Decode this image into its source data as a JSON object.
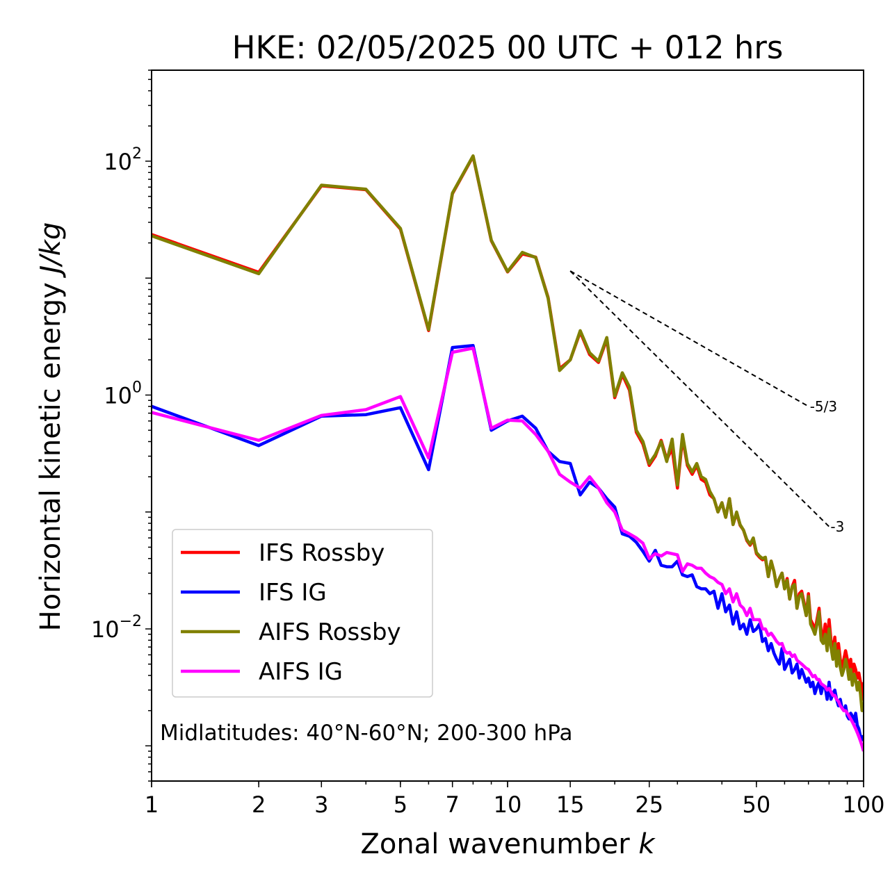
{
  "chart_data": {
    "type": "line",
    "title": "HKE: 02/05/2025 00 UTC + 012 hrs",
    "xlabel": "Zonal wavenumber",
    "xlabel_var": "k",
    "ylabel": "Horizontal kinetic energy",
    "ylabel_units": "J/kg",
    "xscale": "log",
    "yscale": "log",
    "xlim": [
      1,
      100
    ],
    "ylim": [
      0.0005,
      600
    ],
    "xticks": [
      1,
      2,
      3,
      5,
      7,
      10,
      15,
      25,
      50,
      100
    ],
    "xtick_labels": [
      "1",
      "2",
      "3",
      "5",
      "7",
      "10",
      "15",
      "25",
      "50",
      "100"
    ],
    "yticks": [
      0.01,
      1,
      100
    ],
    "ytick_labels": [
      {
        "base": "10",
        "exp": "−2"
      },
      {
        "base": "10",
        "exp": "0"
      },
      {
        "base": "10",
        "exp": "2"
      }
    ],
    "annotation": "Midlatitudes: 40°N-60°N; 200-300 hPa",
    "legend_position": "lower-left",
    "grid": false,
    "series": [
      {
        "name": "IFS Rossby",
        "color": "#ff0000",
        "x": [
          1,
          2,
          3,
          4,
          5,
          6,
          7,
          8,
          9,
          10,
          11,
          12,
          13,
          14,
          15,
          16,
          17,
          18,
          19,
          20,
          21,
          22,
          23,
          24,
          25,
          26,
          27,
          28,
          29,
          30,
          31,
          32,
          33,
          34,
          35,
          36,
          37,
          38,
          39,
          40,
          41,
          42,
          43,
          44,
          45,
          46,
          47,
          48,
          49,
          50,
          51,
          52,
          53,
          54,
          55,
          56,
          57,
          58,
          59,
          60,
          61,
          62,
          63,
          64,
          65,
          66,
          67,
          68,
          69,
          70,
          71,
          72,
          73,
          74,
          75,
          76,
          77,
          78,
          79,
          80,
          81,
          82,
          83,
          84,
          85,
          86,
          87,
          88,
          89,
          90,
          91,
          92,
          93,
          94,
          95,
          96,
          97,
          98,
          99,
          100
        ],
        "values": [
          23.6,
          11.2,
          61.6,
          57.0,
          26.3,
          3.56,
          52.7,
          110,
          20.9,
          11.3,
          16.1,
          15.1,
          6.82,
          1.68,
          2.0,
          3.46,
          2.22,
          1.9,
          3.0,
          0.95,
          1.5,
          1.1,
          0.48,
          0.38,
          0.25,
          0.3,
          0.41,
          0.28,
          0.35,
          0.16,
          0.43,
          0.25,
          0.21,
          0.25,
          0.19,
          0.18,
          0.14,
          0.13,
          0.1,
          0.12,
          0.09,
          0.13,
          0.078,
          0.098,
          0.077,
          0.07,
          0.057,
          0.052,
          0.058,
          0.044,
          0.041,
          0.039,
          0.04,
          0.028,
          0.038,
          0.031,
          0.023,
          0.027,
          0.03,
          0.022,
          0.027,
          0.018,
          0.023,
          0.026,
          0.015,
          0.02,
          0.021,
          0.017,
          0.013,
          0.02,
          0.012,
          0.011,
          0.0095,
          0.012,
          0.015,
          0.0095,
          0.0085,
          0.011,
          0.0075,
          0.012,
          0.008,
          0.0065,
          0.0085,
          0.0055,
          0.0075,
          0.0055,
          0.0047,
          0.0055,
          0.0065,
          0.0055,
          0.0045,
          0.0055,
          0.004,
          0.005,
          0.0045,
          0.0038,
          0.0042,
          0.0035,
          0.0025,
          0.0035
        ]
      },
      {
        "name": "IFS IG",
        "color": "#0000ff",
        "x": [
          1,
          2,
          3,
          4,
          5,
          6,
          7,
          8,
          9,
          10,
          11,
          12,
          13,
          14,
          15,
          16,
          17,
          18,
          19,
          20,
          21,
          22,
          23,
          24,
          25,
          26,
          27,
          28,
          29,
          30,
          31,
          32,
          33,
          34,
          35,
          36,
          37,
          38,
          39,
          40,
          41,
          42,
          43,
          44,
          45,
          46,
          47,
          48,
          49,
          50,
          51,
          52,
          53,
          54,
          55,
          56,
          57,
          58,
          59,
          60,
          61,
          62,
          63,
          64,
          65,
          66,
          67,
          68,
          69,
          70,
          71,
          72,
          73,
          74,
          75,
          76,
          77,
          78,
          79,
          80,
          81,
          82,
          83,
          84,
          85,
          86,
          87,
          88,
          89,
          90,
          91,
          92,
          93,
          94,
          95,
          96,
          97,
          98,
          99,
          100
        ],
        "values": [
          0.8,
          0.37,
          0.66,
          0.68,
          0.78,
          0.23,
          2.55,
          2.65,
          0.5,
          0.6,
          0.66,
          0.52,
          0.33,
          0.27,
          0.26,
          0.14,
          0.18,
          0.16,
          0.13,
          0.11,
          0.065,
          0.062,
          0.055,
          0.046,
          0.038,
          0.047,
          0.035,
          0.034,
          0.034,
          0.038,
          0.029,
          0.028,
          0.029,
          0.023,
          0.022,
          0.022,
          0.02,
          0.021,
          0.015,
          0.02,
          0.014,
          0.016,
          0.011,
          0.014,
          0.01,
          0.011,
          0.009,
          0.012,
          0.0095,
          0.01,
          0.011,
          0.0078,
          0.0083,
          0.0065,
          0.0075,
          0.0062,
          0.0055,
          0.005,
          0.0068,
          0.0045,
          0.005,
          0.0055,
          0.0042,
          0.0045,
          0.005,
          0.0038,
          0.0045,
          0.004,
          0.0035,
          0.0038,
          0.0032,
          0.0035,
          0.0028,
          0.0032,
          0.0035,
          0.0028,
          0.0033,
          0.0032,
          0.0025,
          0.0035,
          0.0025,
          0.0028,
          0.003,
          0.0025,
          0.0022,
          0.0025,
          0.0021,
          0.002,
          0.0022,
          0.0018,
          0.0017,
          0.0019,
          0.0018,
          0.0016,
          0.0019,
          0.0015,
          0.0014,
          0.0012,
          0.0012,
          0.0011
        ]
      },
      {
        "name": "AIFS Rossby",
        "color": "#808000",
        "x": [
          1,
          2,
          3,
          4,
          5,
          6,
          7,
          8,
          9,
          10,
          11,
          12,
          13,
          14,
          15,
          16,
          17,
          18,
          19,
          20,
          21,
          22,
          23,
          24,
          25,
          26,
          27,
          28,
          29,
          30,
          31,
          32,
          33,
          34,
          35,
          36,
          37,
          38,
          39,
          40,
          41,
          42,
          43,
          44,
          45,
          46,
          47,
          48,
          49,
          50,
          51,
          52,
          53,
          54,
          55,
          56,
          57,
          58,
          59,
          60,
          61,
          62,
          63,
          64,
          65,
          66,
          67,
          68,
          69,
          70,
          71,
          72,
          73,
          74,
          75,
          76,
          77,
          78,
          79,
          80,
          81,
          82,
          83,
          84,
          85,
          86,
          87,
          88,
          89,
          90,
          91,
          92,
          93,
          94,
          95,
          96,
          97,
          98,
          99,
          100
        ],
        "values": [
          23.0,
          10.9,
          62.3,
          57.6,
          26.6,
          3.63,
          53.3,
          111,
          21.1,
          11.4,
          16.6,
          15.0,
          6.73,
          1.62,
          2.0,
          3.55,
          2.3,
          1.95,
          3.1,
          0.98,
          1.55,
          1.17,
          0.5,
          0.4,
          0.26,
          0.31,
          0.4,
          0.27,
          0.42,
          0.17,
          0.46,
          0.26,
          0.22,
          0.26,
          0.2,
          0.19,
          0.15,
          0.13,
          0.1,
          0.12,
          0.09,
          0.13,
          0.078,
          0.1,
          0.078,
          0.07,
          0.058,
          0.053,
          0.06,
          0.045,
          0.042,
          0.04,
          0.041,
          0.028,
          0.038,
          0.031,
          0.023,
          0.027,
          0.03,
          0.022,
          0.026,
          0.018,
          0.023,
          0.024,
          0.015,
          0.019,
          0.02,
          0.016,
          0.013,
          0.019,
          0.011,
          0.01,
          0.009,
          0.011,
          0.014,
          0.008,
          0.0075,
          0.009,
          0.0065,
          0.01,
          0.007,
          0.0055,
          0.0075,
          0.0048,
          0.0065,
          0.0047,
          0.004,
          0.0045,
          0.0055,
          0.0047,
          0.0037,
          0.0045,
          0.0033,
          0.0041,
          0.0037,
          0.003,
          0.0035,
          0.0028,
          0.002,
          0.0022
        ]
      },
      {
        "name": "AIFS IG",
        "color": "#ff00ff",
        "x": [
          1,
          2,
          3,
          4,
          5,
          6,
          7,
          8,
          9,
          10,
          11,
          12,
          13,
          14,
          15,
          16,
          17,
          18,
          19,
          20,
          21,
          22,
          23,
          24,
          25,
          26,
          27,
          28,
          29,
          30,
          31,
          32,
          33,
          34,
          35,
          36,
          37,
          38,
          39,
          40,
          41,
          42,
          43,
          44,
          45,
          46,
          47,
          48,
          49,
          50,
          51,
          52,
          53,
          54,
          55,
          56,
          57,
          58,
          59,
          60,
          61,
          62,
          63,
          64,
          65,
          66,
          67,
          68,
          69,
          70,
          71,
          72,
          73,
          74,
          75,
          76,
          77,
          78,
          79,
          80,
          81,
          82,
          83,
          84,
          85,
          86,
          87,
          88,
          89,
          90,
          91,
          92,
          93,
          94,
          95,
          96,
          97,
          98,
          99,
          100
        ],
        "values": [
          0.71,
          0.41,
          0.67,
          0.75,
          0.97,
          0.29,
          2.32,
          2.52,
          0.52,
          0.61,
          0.6,
          0.46,
          0.33,
          0.21,
          0.18,
          0.16,
          0.2,
          0.16,
          0.12,
          0.1,
          0.07,
          0.065,
          0.06,
          0.054,
          0.04,
          0.044,
          0.042,
          0.045,
          0.044,
          0.043,
          0.031,
          0.036,
          0.035,
          0.033,
          0.033,
          0.03,
          0.028,
          0.027,
          0.025,
          0.024,
          0.02,
          0.022,
          0.017,
          0.02,
          0.016,
          0.015,
          0.013,
          0.015,
          0.012,
          0.012,
          0.012,
          0.01,
          0.01,
          0.0088,
          0.0092,
          0.0085,
          0.0078,
          0.0074,
          0.0075,
          0.0065,
          0.0062,
          0.0063,
          0.0058,
          0.006,
          0.0054,
          0.0052,
          0.005,
          0.0048,
          0.0046,
          0.0045,
          0.0042,
          0.0039,
          0.004,
          0.0037,
          0.0037,
          0.0034,
          0.0033,
          0.0032,
          0.003,
          0.0031,
          0.0029,
          0.0027,
          0.0027,
          0.0025,
          0.0024,
          0.0022,
          0.0021,
          0.002,
          0.002,
          0.0019,
          0.0018,
          0.0017,
          0.0016,
          0.0015,
          0.0014,
          0.0013,
          0.0012,
          0.0011,
          0.001,
          0.0009
        ]
      }
    ],
    "reference_slopes": [
      {
        "label": "-5/3",
        "x": [
          15,
          70
        ],
        "y": [
          11.5,
          0.8
        ]
      },
      {
        "label": "-3",
        "x": [
          15,
          80
        ],
        "y": [
          11.5,
          0.075
        ]
      }
    ]
  }
}
